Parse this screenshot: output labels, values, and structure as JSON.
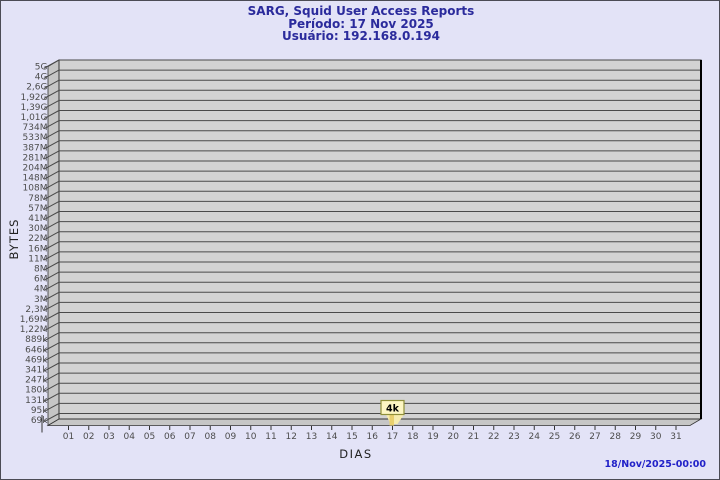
{
  "window": {
    "background": "#e3e3f7",
    "border_color": "#4b4b55"
  },
  "header": {
    "title": "SARG, Squid User Access Reports",
    "period": "Período: 17 Nov 2025",
    "user": "Usuário: 192.168.0.194",
    "text_color": "#2b2b9c"
  },
  "footer": {
    "generated": "18/Nov/2025-00:00",
    "text_color": "#2121c8"
  },
  "chart_data": {
    "type": "bar",
    "title": "SARG, Squid User Access Reports",
    "subtitle_period": "Período: 17 Nov 2025",
    "subtitle_user": "Usuário: 192.168.0.194",
    "xlabel": "DIAS",
    "ylabel": "BYTES",
    "legend": "none",
    "grid": "horizontal lines at every y tick, 3D wall on left and floor on bottom",
    "y_tick_labels_top_to_bottom": [
      "5G",
      "4G",
      "2,6G",
      "1,92G",
      "1,39G",
      "1,01G",
      "734M",
      "533M",
      "387M",
      "281M",
      "204M",
      "148M",
      "108M",
      "78M",
      "57M",
      "41M",
      "30M",
      "22M",
      "16M",
      "11M",
      "8M",
      "6M",
      "4M",
      "3M",
      "2,3M",
      "1,69M",
      "1,22M",
      "889k",
      "646k",
      "469k",
      "341k",
      "247k",
      "180k",
      "131k",
      "95k",
      "69k"
    ],
    "x_categories": [
      "01",
      "02",
      "03",
      "04",
      "05",
      "06",
      "07",
      "08",
      "09",
      "10",
      "11",
      "12",
      "13",
      "14",
      "15",
      "16",
      "17",
      "18",
      "19",
      "20",
      "21",
      "22",
      "23",
      "24",
      "25",
      "26",
      "27",
      "28",
      "29",
      "30",
      "31"
    ],
    "bars": [
      {
        "day": "17",
        "value_label": "4k"
      }
    ],
    "style": {
      "plot_bg": "#d3d3d3",
      "wall_bg": "#c6c6c6",
      "grid_color": "#4a4a4a",
      "axis_color": "#333333",
      "right_edge_color": "#000000",
      "tick_label_color": "#4d4d4d",
      "flag_fill": "#fdf6c3",
      "flag_border": "#8f8f3a",
      "flag_ribbon": "#f6ecae",
      "flag_stem": "#e9d06e"
    }
  }
}
